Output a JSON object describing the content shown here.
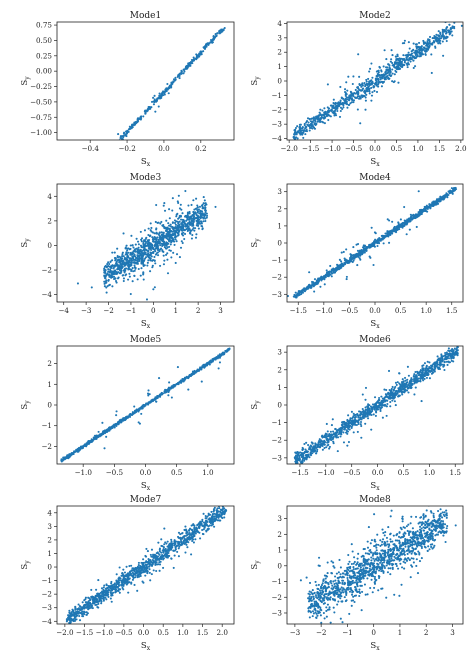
{
  "chart_data": [
    {
      "type": "scatter",
      "title": "Mode1",
      "xlabel": "Sx",
      "ylabel": "Sy",
      "xlim": [
        -0.58,
        0.38
      ],
      "ylim": [
        -1.12,
        0.8
      ],
      "xticks": [
        -0.4,
        -0.2,
        0.0,
        0.2
      ],
      "xtick_labels": [
        "−0.4",
        "−0.2",
        "0.0",
        "0.2"
      ],
      "yticks": [
        -1.0,
        -0.75,
        -0.5,
        -0.25,
        0.0,
        0.25,
        0.5,
        0.75
      ],
      "ytick_labels": [
        "−1.00",
        "−0.75",
        "−0.50",
        "−0.25",
        "0.00",
        "0.25",
        "0.50",
        "0.75"
      ],
      "color": "#1f77b4",
      "trend": {
        "x_min": -0.53,
        "x_max": 0.33,
        "slope": 3.24,
        "intercept": -0.345,
        "core_spread": 0.02,
        "outlier_spread": 0.08,
        "outlier_fraction": 0.05
      }
    },
    {
      "type": "scatter",
      "title": "Mode2",
      "xlabel": "Sx",
      "ylabel": "Sy",
      "xlim": [
        -2.05,
        2.05
      ],
      "ylim": [
        -4.1,
        4.1
      ],
      "xticks": [
        -2.0,
        -1.5,
        -1.0,
        -0.5,
        0.0,
        0.5,
        1.0,
        1.5,
        2.0
      ],
      "xtick_labels": [
        "−2.0",
        "−1.5",
        "−1.0",
        "−0.5",
        "0.0",
        "0.5",
        "1.0",
        "1.5",
        "2.0"
      ],
      "yticks": [
        -4,
        -3,
        -2,
        -1,
        0,
        1,
        2,
        3,
        4
      ],
      "ytick_labels": [
        "−4",
        "−3",
        "−2",
        "−1",
        "0",
        "1",
        "2",
        "3",
        "4"
      ],
      "color": "#1f77b4",
      "trend": {
        "x_min": -1.9,
        "x_max": 1.85,
        "slope": 2.0,
        "intercept": 0.0,
        "core_spread": 0.25,
        "outlier_spread": 1.0,
        "outlier_fraction": 0.1
      }
    },
    {
      "type": "scatter",
      "title": "Mode3",
      "xlabel": "Sx",
      "ylabel": "Sy",
      "xlim": [
        -4.3,
        3.6
      ],
      "ylim": [
        -4.6,
        5.0
      ],
      "xticks": [
        -4,
        -3,
        -2,
        -1,
        0,
        1,
        2,
        3
      ],
      "xtick_labels": [
        "−4",
        "−3",
        "−2",
        "−1",
        "0",
        "1",
        "2",
        "3"
      ],
      "yticks": [
        -4,
        -2,
        0,
        2,
        4
      ],
      "ytick_labels": [
        "−4",
        "−2",
        "0",
        "2",
        "4"
      ],
      "color": "#1f77b4",
      "trend": {
        "x_min": -2.2,
        "x_max": 2.4,
        "slope": 1.15,
        "intercept": 0.0,
        "core_spread": 0.55,
        "outlier_spread": 1.4,
        "outlier_fraction": 0.2
      }
    },
    {
      "type": "scatter",
      "title": "Mode4",
      "xlabel": "Sx",
      "ylabel": "Sy",
      "xlim": [
        -1.72,
        1.72
      ],
      "ylim": [
        -3.45,
        3.45
      ],
      "xticks": [
        -1.5,
        -1.0,
        -0.5,
        0.0,
        0.5,
        1.0,
        1.5
      ],
      "xtick_labels": [
        "−1.5",
        "−1.0",
        "−0.5",
        "0.0",
        "0.5",
        "1.0",
        "1.5"
      ],
      "yticks": [
        -3,
        -2,
        -1,
        0,
        1,
        2,
        3
      ],
      "ytick_labels": [
        "−3",
        "−2",
        "−1",
        "0",
        "1",
        "2",
        "3"
      ],
      "color": "#1f77b4",
      "trend": {
        "x_min": -1.6,
        "x_max": 1.6,
        "slope": 2.0,
        "intercept": 0.0,
        "core_spread": 0.08,
        "outlier_spread": 0.45,
        "outlier_fraction": 0.07
      }
    },
    {
      "type": "scatter",
      "title": "Mode5",
      "xlabel": "Sx",
      "ylabel": "Sy",
      "xlim": [
        -1.42,
        1.42
      ],
      "ylim": [
        -2.85,
        2.85
      ],
      "xticks": [
        -1.0,
        -0.5,
        0.0,
        0.5,
        1.0
      ],
      "xtick_labels": [
        "−1.0",
        "−0.5",
        "0.0",
        "0.5",
        "1.0"
      ],
      "yticks": [
        -2,
        -1,
        0,
        1,
        2
      ],
      "ytick_labels": [
        "−2",
        "−1",
        "0",
        "1",
        "2"
      ],
      "color": "#1f77b4",
      "trend": {
        "x_min": -1.35,
        "x_max": 1.35,
        "slope": 2.0,
        "intercept": 0.0,
        "core_spread": 0.04,
        "outlier_spread": 0.4,
        "outlier_fraction": 0.05
      }
    },
    {
      "type": "scatter",
      "title": "Mode6",
      "xlabel": "Sx",
      "ylabel": "Sy",
      "xlim": [
        -1.75,
        1.65
      ],
      "ylim": [
        -3.35,
        3.35
      ],
      "xticks": [
        -1.5,
        -1.0,
        -0.5,
        0.0,
        0.5,
        1.0,
        1.5
      ],
      "xtick_labels": [
        "−1.5",
        "−1.0",
        "−0.5",
        "0.0",
        "0.5",
        "1.0",
        "1.5"
      ],
      "yticks": [
        -3,
        -2,
        -1,
        0,
        1,
        2,
        3
      ],
      "ytick_labels": [
        "−3",
        "−2",
        "−1",
        "0",
        "1",
        "2",
        "3"
      ],
      "color": "#1f77b4",
      "trend": {
        "x_min": -1.6,
        "x_max": 1.55,
        "slope": 2.0,
        "intercept": 0.0,
        "core_spread": 0.2,
        "outlier_spread": 0.6,
        "outlier_fraction": 0.08
      }
    },
    {
      "type": "scatter",
      "title": "Mode7",
      "xlabel": "Sx",
      "ylabel": "Sy",
      "xlim": [
        -2.2,
        2.3
      ],
      "ylim": [
        -4.2,
        4.5
      ],
      "xticks": [
        -2.0,
        -1.5,
        -1.0,
        -0.5,
        0.0,
        0.5,
        1.0,
        1.5,
        2.0
      ],
      "xtick_labels": [
        "−2.0",
        "−1.5",
        "−1.0",
        "−0.5",
        "0.0",
        "0.5",
        "1.0",
        "1.5",
        "2.0"
      ],
      "yticks": [
        -4,
        -3,
        -2,
        -1,
        0,
        1,
        2,
        3,
        4
      ],
      "ytick_labels": [
        "−4",
        "−3",
        "−2",
        "−1",
        "0",
        "1",
        "2",
        "3",
        "4"
      ],
      "color": "#1f77b4",
      "trend": {
        "x_min": -1.95,
        "x_max": 2.1,
        "slope": 2.0,
        "intercept": 0.0,
        "core_spread": 0.28,
        "outlier_spread": 0.8,
        "outlier_fraction": 0.08
      }
    },
    {
      "type": "scatter",
      "title": "Mode8",
      "xlabel": "Sx",
      "ylabel": "Sy",
      "xlim": [
        -3.3,
        3.4
      ],
      "ylim": [
        -3.7,
        3.8
      ],
      "xticks": [
        -3,
        -2,
        -1,
        0,
        1,
        2,
        3
      ],
      "xtick_labels": [
        "−3",
        "−2",
        "−1",
        "0",
        "1",
        "2",
        "3"
      ],
      "yticks": [
        -3,
        -2,
        -1,
        0,
        1,
        2,
        3
      ],
      "ytick_labels": [
        "−3",
        "−2",
        "−1",
        "0",
        "1",
        "2",
        "3"
      ],
      "color": "#1f77b4",
      "trend": {
        "x_min": -2.5,
        "x_max": 2.8,
        "slope": 1.0,
        "intercept": 0.0,
        "core_spread": 0.55,
        "outlier_spread": 1.2,
        "outlier_fraction": 0.2
      }
    }
  ]
}
